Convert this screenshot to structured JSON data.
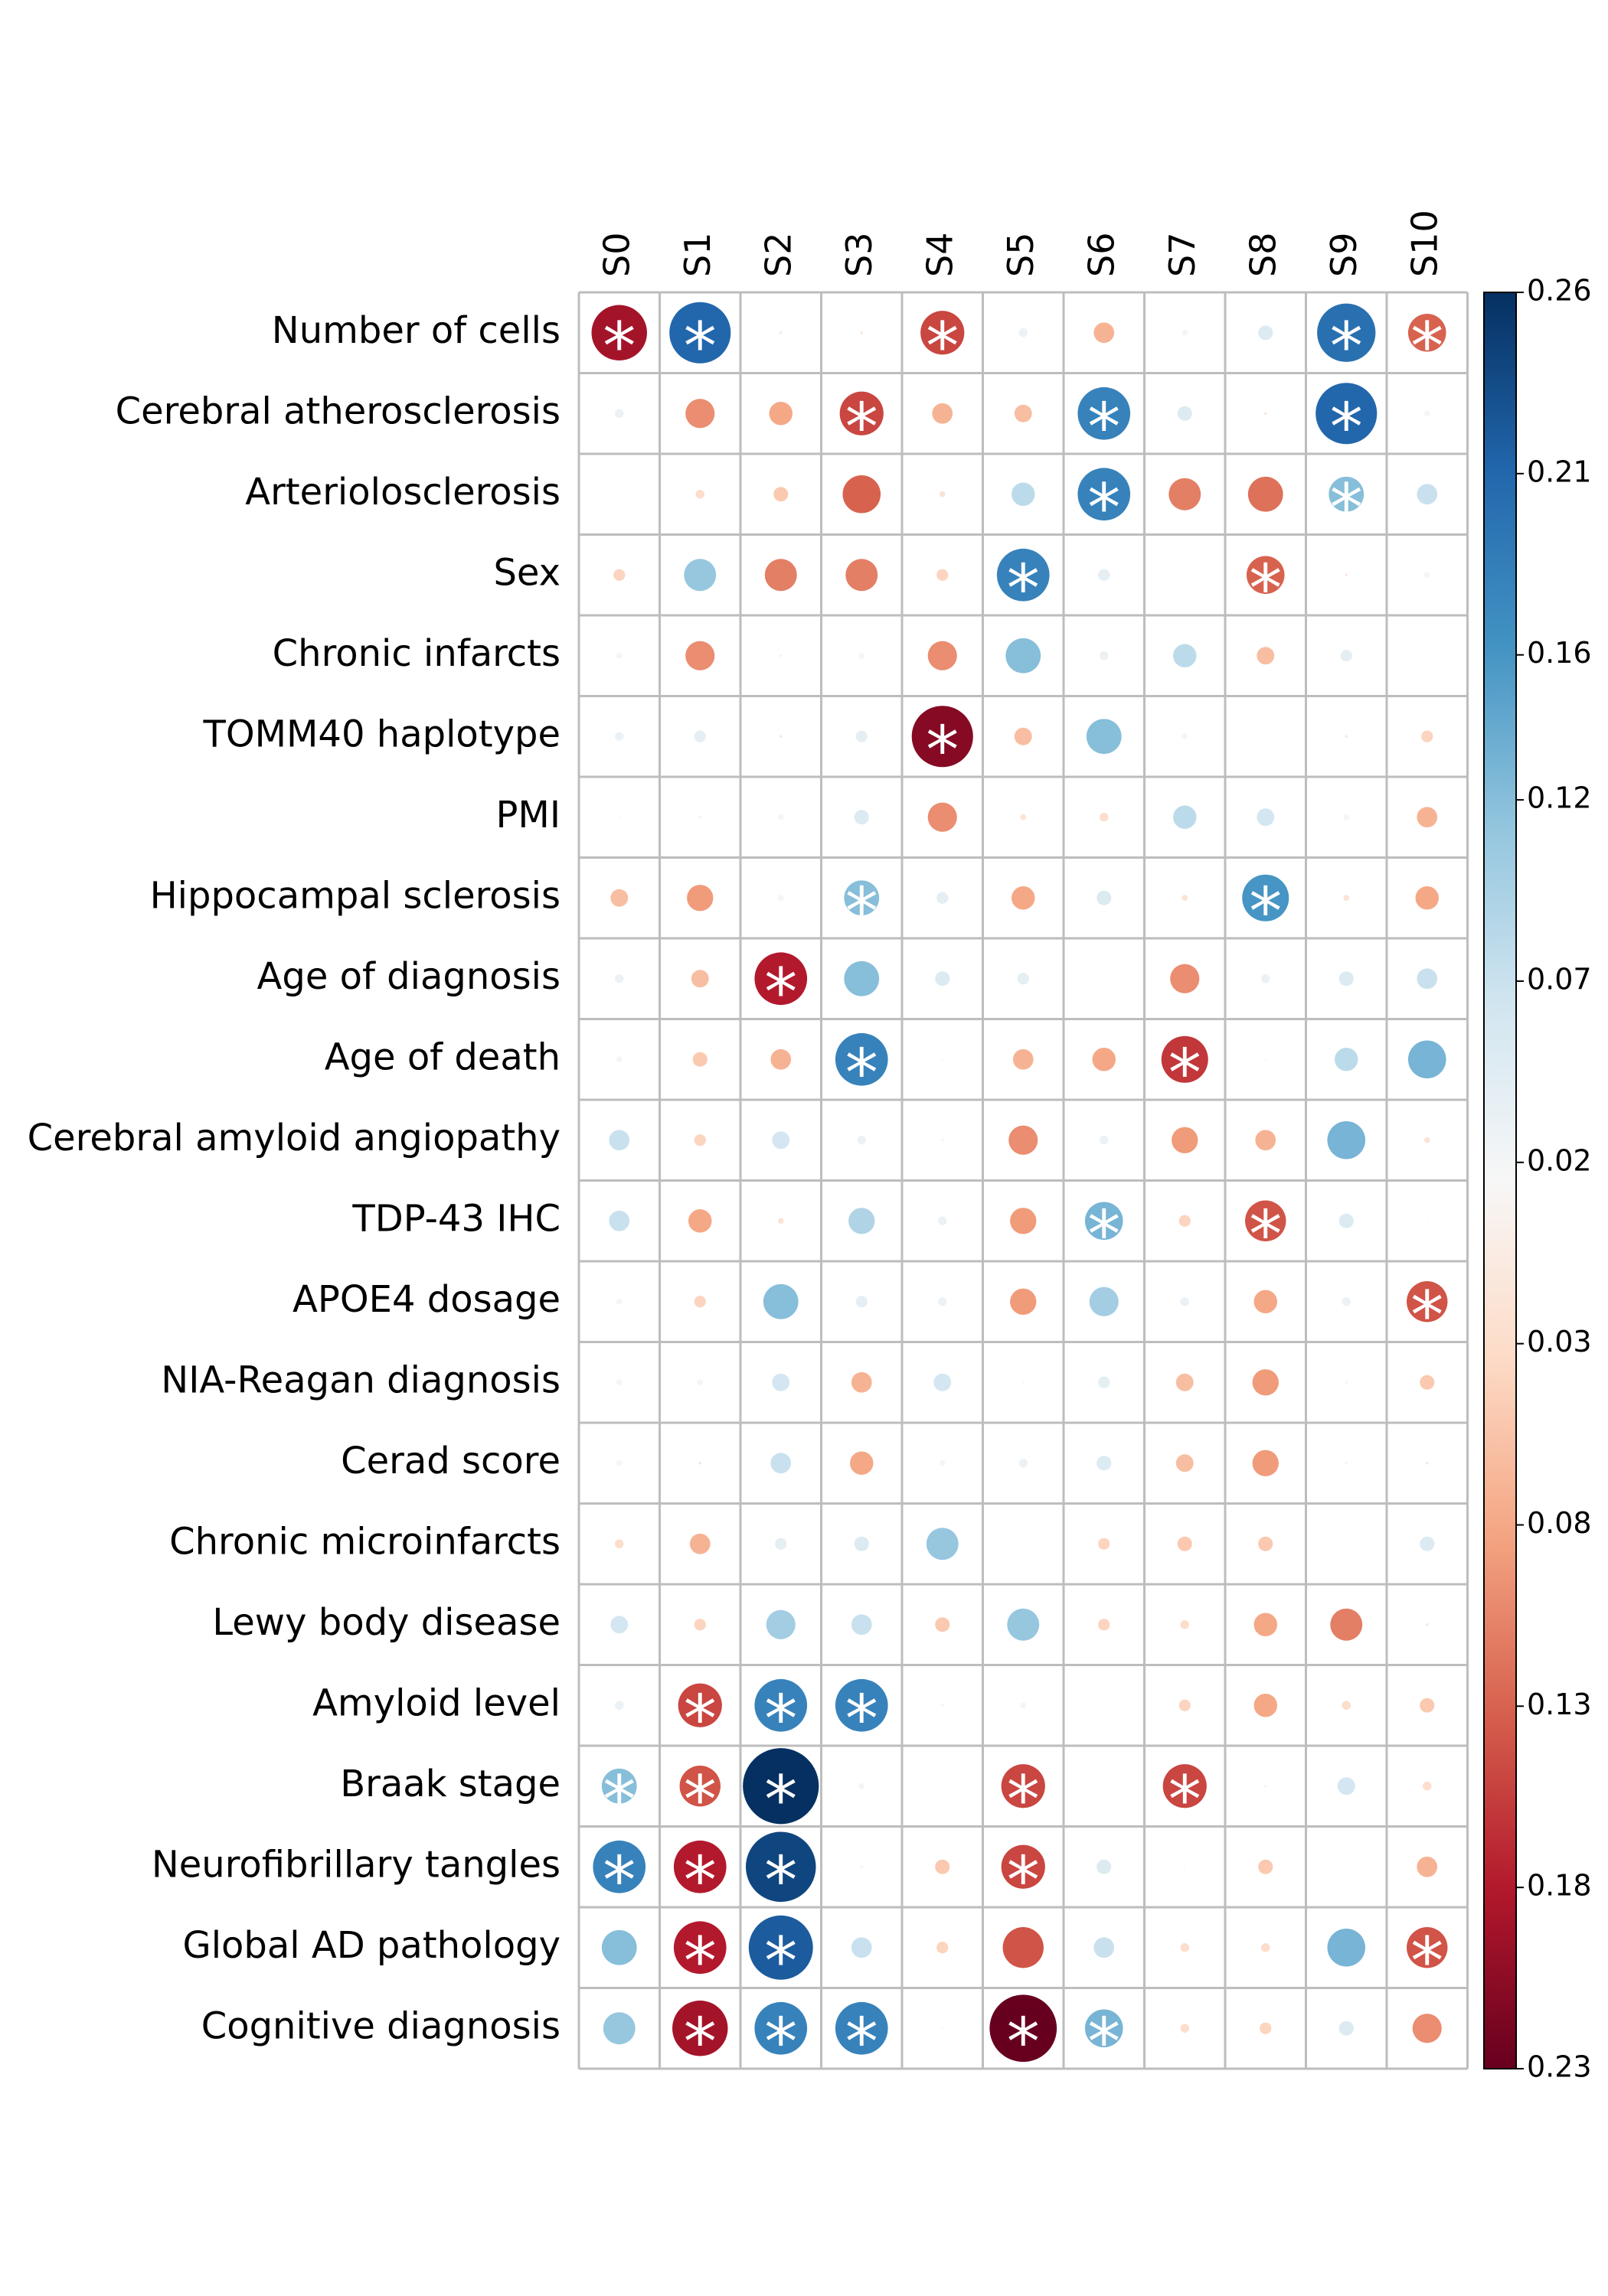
{
  "chart_data": {
    "type": "corrplot",
    "rows": [
      "Number of cells",
      "Cerebral atherosclerosis",
      "Arteriolosclerosis",
      "Sex",
      "Chronic infarcts",
      "TOMM40 haplotype",
      "PMI",
      "Hippocampal sclerosis",
      "Age of diagnosis",
      "Age of death",
      "Cerebral amyloid angiopathy",
      "TDP-43 IHC",
      "APOE4 dosage",
      "NIA-Reagan diagnosis",
      "Cerad score",
      "Chronic microinfarcts",
      "Lewy body disease",
      "Amyloid level",
      "Braak stage",
      "Neurofibrillary tangles",
      "Global AD pathology",
      "Cognitive diagnosis"
    ],
    "columns": [
      "S0",
      "S1",
      "S2",
      "S3",
      "S4",
      "S5",
      "S6",
      "S7",
      "S8",
      "S9",
      "S10"
    ],
    "values": [
      [
        -0.19,
        0.21,
        -0.01,
        -0.01,
        -0.15,
        0.03,
        -0.07,
        0.02,
        0.05,
        0.2,
        -0.13
      ],
      [
        0.03,
        -0.1,
        -0.08,
        -0.15,
        -0.07,
        -0.06,
        0.18,
        0.05,
        -0.01,
        0.21,
        0.02
      ],
      [
        0,
        -0.03,
        -0.05,
        -0.13,
        -0.02,
        0.08,
        0.18,
        -0.11,
        -0.12,
        0.12,
        0.07
      ],
      [
        -0.04,
        0.11,
        -0.11,
        -0.11,
        -0.04,
        0.18,
        0.04,
        0,
        -0.13,
        -0.01,
        0.02
      ],
      [
        0.02,
        -0.1,
        0.01,
        0.02,
        -0.1,
        0.12,
        0.03,
        0.08,
        -0.06,
        0.04,
        0.005
      ],
      [
        0.03,
        0.04,
        -0.01,
        0.04,
        -0.21,
        -0.06,
        0.12,
        0.02,
        0,
        -0.01,
        -0.04
      ],
      [
        0.005,
        0.01,
        0.02,
        0.05,
        -0.1,
        -0.02,
        -0.03,
        0.08,
        0.06,
        0.02,
        -0.07
      ],
      [
        -0.06,
        -0.09,
        0.02,
        0.12,
        0.04,
        -0.08,
        0.05,
        -0.02,
        0.16,
        -0.02,
        -0.08
      ],
      [
        0.03,
        -0.06,
        -0.18,
        0.12,
        0.05,
        0.04,
        0,
        -0.1,
        0.03,
        0.05,
        0.07
      ],
      [
        0.02,
        -0.05,
        -0.07,
        0.18,
        0.005,
        -0.07,
        -0.08,
        -0.16,
        0.005,
        0.08,
        0.13
      ],
      [
        0.07,
        -0.04,
        0.06,
        0.03,
        0.01,
        -0.1,
        0.03,
        -0.09,
        -0.07,
        0.13,
        -0.02
      ],
      [
        0.07,
        -0.08,
        -0.02,
        0.09,
        0.03,
        -0.09,
        0.13,
        -0.04,
        -0.14,
        0.05,
        0.005
      ],
      [
        0.02,
        -0.04,
        0.12,
        0.04,
        0.03,
        -0.09,
        0.1,
        0.03,
        -0.08,
        0.03,
        -0.14
      ],
      [
        0.02,
        0.02,
        0.06,
        -0.07,
        0.06,
        0.005,
        0.04,
        -0.06,
        -0.09,
        0.01,
        -0.05
      ],
      [
        0.02,
        -0.01,
        0.07,
        -0.08,
        0.02,
        0.03,
        0.05,
        -0.06,
        -0.09,
        0.01,
        -0.01
      ],
      [
        -0.03,
        -0.07,
        0.04,
        0.05,
        0.11,
        0,
        -0.04,
        -0.05,
        -0.05,
        0.005,
        0.05
      ],
      [
        0.06,
        -0.04,
        0.1,
        0.07,
        -0.05,
        0.11,
        -0.04,
        -0.03,
        -0.08,
        -0.11,
        -0.01
      ],
      [
        0.03,
        -0.15,
        0.18,
        0.18,
        0.01,
        0.02,
        0,
        -0.04,
        -0.08,
        -0.03,
        -0.05
      ],
      [
        0.12,
        -0.14,
        0.26,
        0.02,
        0,
        -0.15,
        0,
        -0.15,
        0.01,
        0.06,
        -0.03
      ],
      [
        0.18,
        -0.18,
        0.24,
        0.01,
        -0.05,
        -0.15,
        0.05,
        0.005,
        -0.05,
        0.005,
        -0.07
      ],
      [
        0.12,
        -0.18,
        0.22,
        0.07,
        -0.04,
        -0.14,
        0.07,
        -0.03,
        -0.03,
        0.13,
        -0.14
      ],
      [
        0.11,
        -0.19,
        0.18,
        0.18,
        -0.005,
        -0.23,
        0.13,
        -0.03,
        -0.04,
        0.05,
        -0.1
      ]
    ],
    "significant": [
      [
        true,
        true,
        false,
        false,
        true,
        false,
        false,
        false,
        false,
        true,
        true
      ],
      [
        false,
        false,
        false,
        true,
        false,
        false,
        true,
        false,
        false,
        true,
        false
      ],
      [
        false,
        false,
        false,
        false,
        false,
        false,
        true,
        false,
        false,
        true,
        false
      ],
      [
        false,
        false,
        false,
        false,
        false,
        true,
        false,
        false,
        true,
        false,
        false
      ],
      [
        false,
        false,
        false,
        false,
        false,
        false,
        false,
        false,
        false,
        false,
        false
      ],
      [
        false,
        false,
        false,
        false,
        true,
        false,
        false,
        false,
        false,
        false,
        false
      ],
      [
        false,
        false,
        false,
        false,
        false,
        false,
        false,
        false,
        false,
        false,
        false
      ],
      [
        false,
        false,
        false,
        true,
        false,
        false,
        false,
        false,
        true,
        false,
        false
      ],
      [
        false,
        false,
        true,
        false,
        false,
        false,
        false,
        false,
        false,
        false,
        false
      ],
      [
        false,
        false,
        false,
        true,
        false,
        false,
        false,
        true,
        false,
        false,
        false
      ],
      [
        false,
        false,
        false,
        false,
        false,
        false,
        false,
        false,
        false,
        false,
        false
      ],
      [
        false,
        false,
        false,
        false,
        false,
        false,
        true,
        false,
        true,
        false,
        false
      ],
      [
        false,
        false,
        false,
        false,
        false,
        false,
        false,
        false,
        false,
        false,
        true
      ],
      [
        false,
        false,
        false,
        false,
        false,
        false,
        false,
        false,
        false,
        false,
        false
      ],
      [
        false,
        false,
        false,
        false,
        false,
        false,
        false,
        false,
        false,
        false,
        false
      ],
      [
        false,
        false,
        false,
        false,
        false,
        false,
        false,
        false,
        false,
        false,
        false
      ],
      [
        false,
        false,
        false,
        false,
        false,
        false,
        false,
        false,
        false,
        false,
        false
      ],
      [
        false,
        true,
        true,
        true,
        false,
        false,
        false,
        false,
        false,
        false,
        false
      ],
      [
        true,
        true,
        true,
        false,
        false,
        true,
        false,
        true,
        false,
        false,
        false
      ],
      [
        true,
        true,
        true,
        false,
        false,
        true,
        false,
        false,
        false,
        false,
        false
      ],
      [
        false,
        true,
        true,
        false,
        false,
        false,
        false,
        false,
        false,
        false,
        true
      ],
      [
        false,
        true,
        true,
        true,
        false,
        true,
        true,
        false,
        false,
        false,
        false
      ]
    ],
    "star": "*",
    "clim": [
      -0.23,
      0.26
    ],
    "colormap": [
      "#67001f",
      "#b2182b",
      "#d6604d",
      "#f4a582",
      "#fddbc7",
      "#f7f7f7",
      "#d1e5f0",
      "#92c5de",
      "#4393c3",
      "#2166ac",
      "#053061"
    ],
    "cticks": [
      0.26,
      0.21,
      0.16,
      0.12,
      0.07,
      0.02,
      {
        "value": -0.03,
        "label": "0.03"
      },
      {
        "value": -0.08,
        "label": "0.08"
      },
      {
        "value": -0.13,
        "label": "0.13"
      },
      {
        "value": -0.18,
        "label": "0.18"
      },
      {
        "value": -0.23,
        "label": "0.23"
      }
    ]
  }
}
